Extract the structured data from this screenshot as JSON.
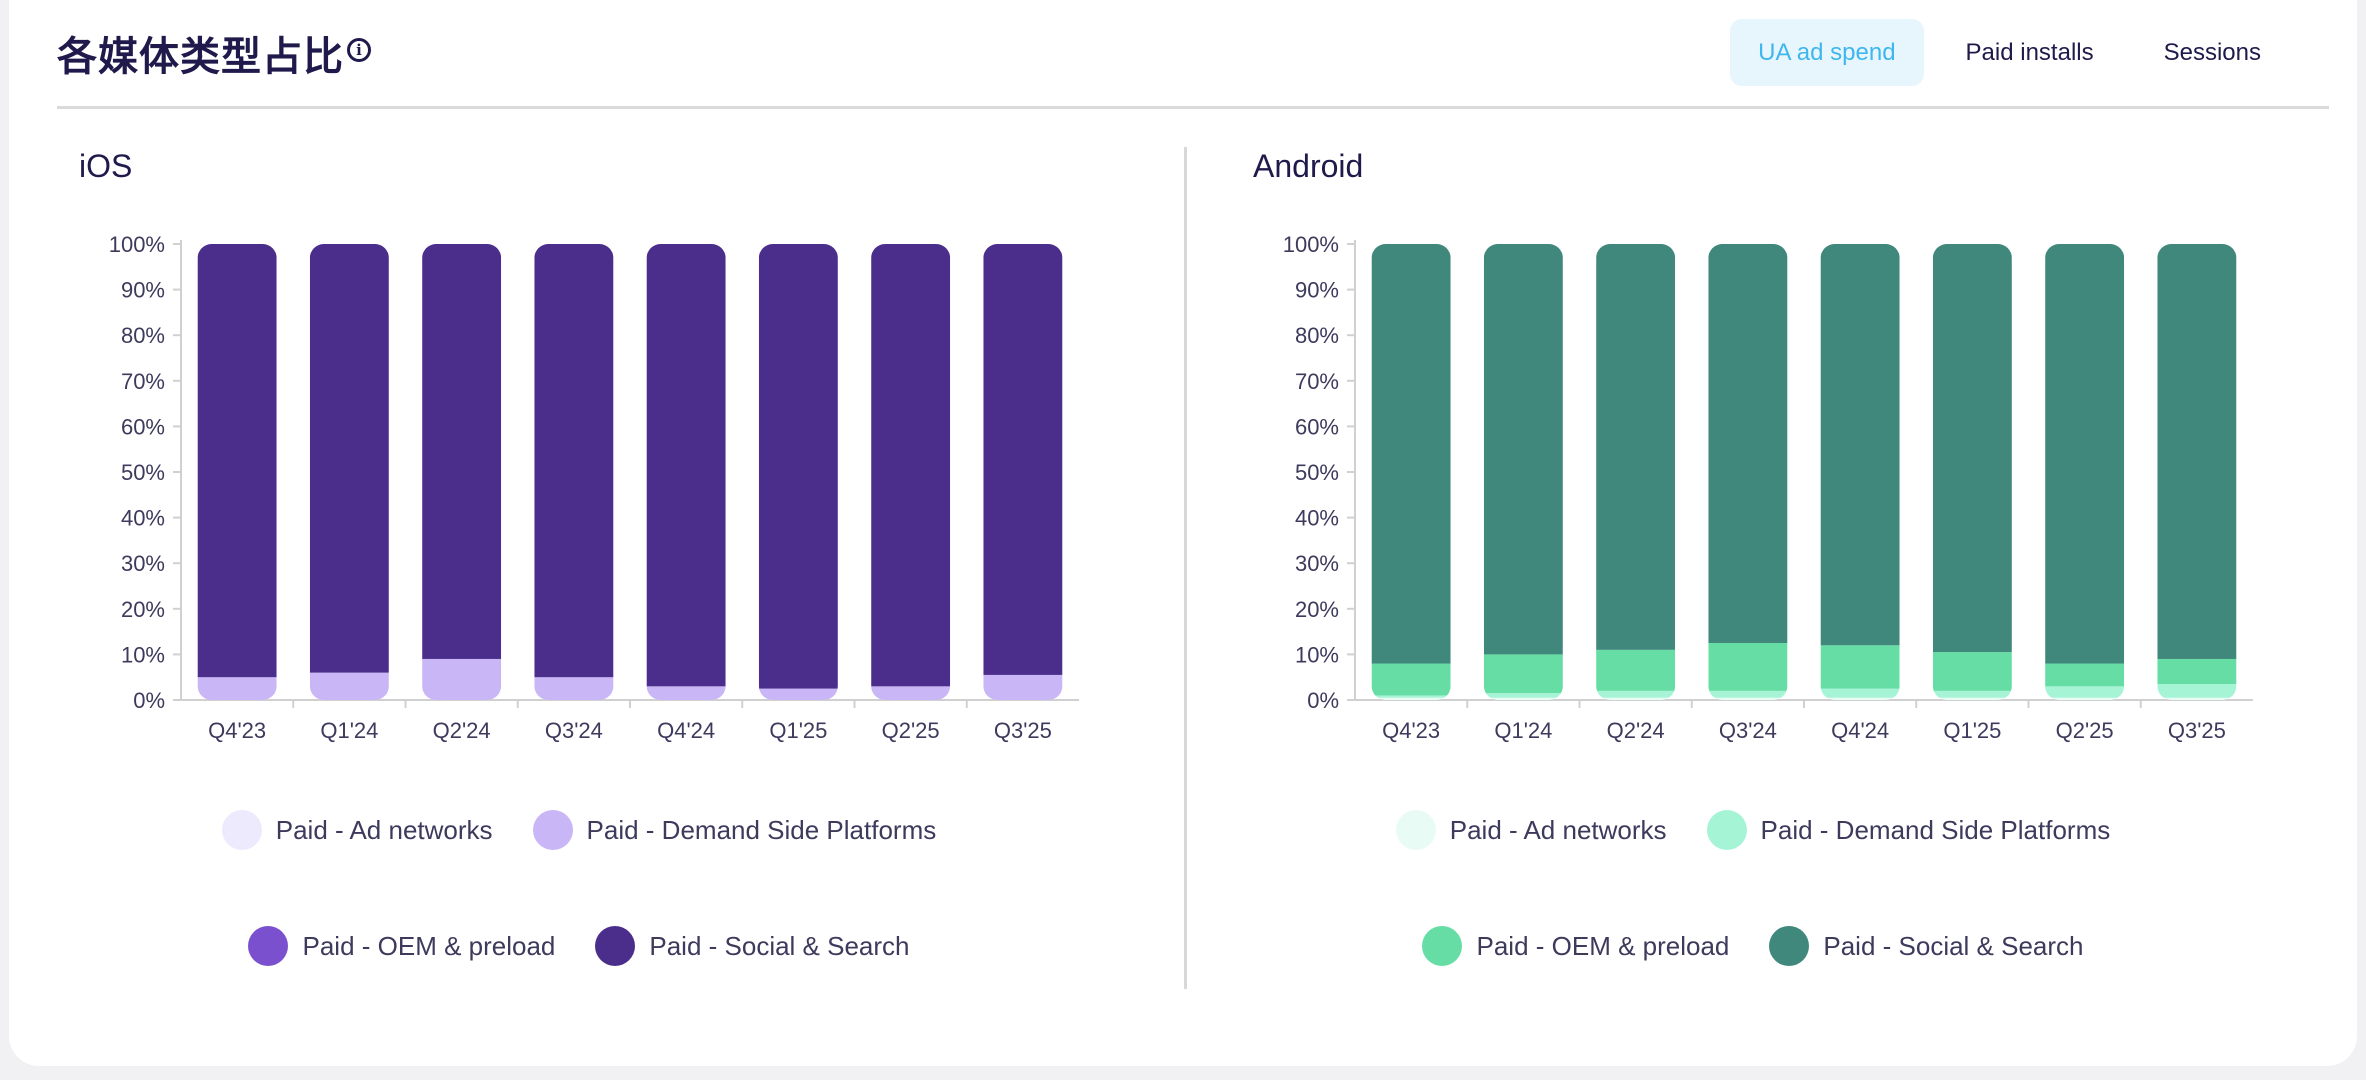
{
  "header": {
    "title": "各媒体类型占比",
    "tabs": [
      {
        "label": "UA ad spend",
        "active": true
      },
      {
        "label": "Paid installs",
        "active": false
      },
      {
        "label": "Sessions",
        "active": false
      }
    ]
  },
  "chart_data": [
    {
      "type": "bar",
      "stacked": true,
      "title": "iOS",
      "categories": [
        "Q4'23",
        "Q1'24",
        "Q2'24",
        "Q3'24",
        "Q4'24",
        "Q1'25",
        "Q2'25",
        "Q3'25"
      ],
      "yticks": [
        "0%",
        "10%",
        "20%",
        "30%",
        "40%",
        "50%",
        "60%",
        "70%",
        "80%",
        "90%",
        "100%"
      ],
      "ylim": [
        0,
        100
      ],
      "series": [
        {
          "name": "Paid - Ad networks",
          "color": "#eeeafe",
          "values": [
            0,
            0,
            0,
            0,
            0,
            0,
            0,
            0
          ]
        },
        {
          "name": "Paid - Demand Side Platforms",
          "color": "#c9b6f7",
          "values": [
            5,
            6,
            9,
            5,
            3,
            2.5,
            3,
            5.5
          ]
        },
        {
          "name": "Paid - OEM & preload",
          "color": "#7b50cf",
          "values": [
            0,
            0,
            0,
            0,
            0,
            0,
            0,
            0
          ]
        },
        {
          "name": "Paid - Social & Search",
          "color": "#4b2e8b",
          "values": [
            95,
            94,
            91,
            95,
            97,
            97.5,
            97,
            94.5
          ]
        }
      ]
    },
    {
      "type": "bar",
      "stacked": true,
      "title": "Android",
      "categories": [
        "Q4'23",
        "Q1'24",
        "Q2'24",
        "Q3'24",
        "Q4'24",
        "Q1'25",
        "Q2'25",
        "Q3'25"
      ],
      "yticks": [
        "0%",
        "10%",
        "20%",
        "30%",
        "40%",
        "50%",
        "60%",
        "70%",
        "80%",
        "90%",
        "100%"
      ],
      "ylim": [
        0,
        100
      ],
      "series": [
        {
          "name": "Paid - Ad networks",
          "color": "#e9fbf5",
          "values": [
            0.5,
            0.5,
            0.5,
            0.5,
            0.5,
            0.5,
            0.5,
            0.5
          ]
        },
        {
          "name": "Paid - Demand Side Platforms",
          "color": "#a6f4d6",
          "values": [
            0.5,
            1,
            1.5,
            1.5,
            2,
            1.5,
            2.5,
            3
          ]
        },
        {
          "name": "Paid - OEM & preload",
          "color": "#66dda4",
          "values": [
            7,
            8.5,
            9,
            10.5,
            9.5,
            8.5,
            5,
            5.5
          ]
        },
        {
          "name": "Paid - Social & Search",
          "color": "#40877c",
          "values": [
            92,
            90,
            89,
            87.5,
            88,
            89.5,
            92,
            91
          ]
        }
      ]
    }
  ]
}
